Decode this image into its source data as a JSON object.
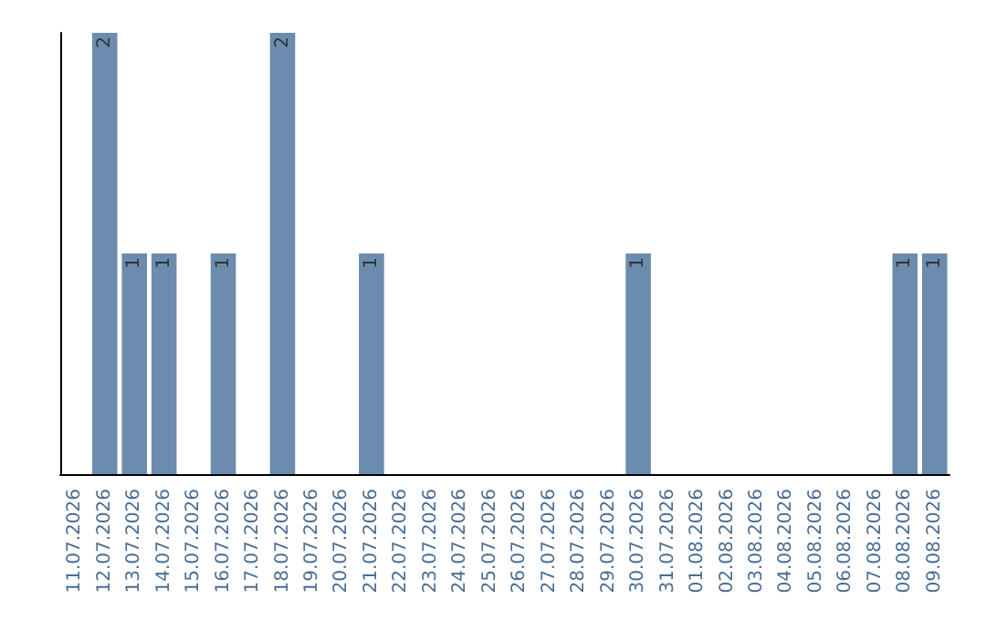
{
  "chart_data": {
    "type": "bar",
    "categories": [
      "11.07.2026",
      "12.07.2026",
      "13.07.2026",
      "14.07.2026",
      "15.07.2026",
      "16.07.2026",
      "17.07.2026",
      "18.07.2026",
      "19.07.2026",
      "20.07.2026",
      "21.07.2026",
      "22.07.2026",
      "23.07.2026",
      "24.07.2026",
      "25.07.2026",
      "26.07.2026",
      "27.07.2026",
      "28.07.2026",
      "29.07.2026",
      "30.07.2026",
      "31.07.2026",
      "01.08.2026",
      "02.08.2026",
      "03.08.2026",
      "04.08.2026",
      "05.08.2026",
      "06.08.2026",
      "07.08.2026",
      "08.08.2026",
      "09.08.2026"
    ],
    "values": [
      0,
      2,
      1,
      1,
      0,
      1,
      0,
      2,
      0,
      0,
      1,
      0,
      0,
      0,
      0,
      0,
      0,
      0,
      0,
      1,
      0,
      0,
      0,
      0,
      0,
      0,
      0,
      0,
      1,
      1
    ],
    "value_labels": [
      null,
      "2",
      "1",
      "1",
      null,
      "1",
      null,
      "2",
      null,
      null,
      "1",
      null,
      null,
      null,
      null,
      null,
      null,
      null,
      null,
      "1",
      null,
      null,
      null,
      null,
      null,
      null,
      null,
      null,
      "1",
      "1"
    ],
    "color": "#6b8cae",
    "tick_labels": "x"
  }
}
